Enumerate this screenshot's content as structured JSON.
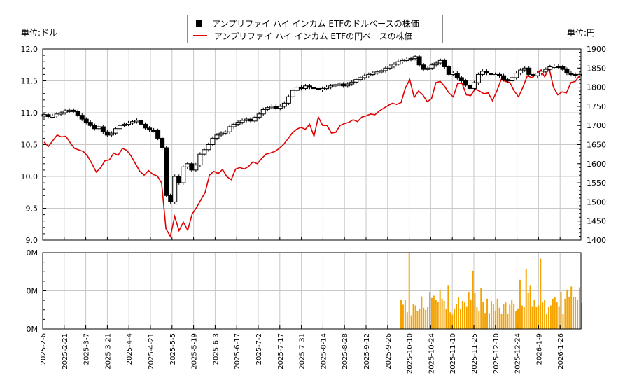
{
  "legend": {
    "usd_series_label": "アンプリファイ ハイ インカム ETFのドルベースの株価",
    "jpy_series_label": "アンプリファイ ハイ インカム ETFの円ベースの株価"
  },
  "axes": {
    "left_unit": "単位:ドル",
    "right_unit": "単位:円",
    "left_ticks": [
      "12.0",
      "11.5",
      "11.0",
      "10.5",
      "10.0",
      "9.5",
      "9.0"
    ],
    "right_ticks": [
      "1900",
      "1850",
      "1800",
      "1750",
      "1700",
      "1650",
      "1600",
      "1550",
      "1500",
      "1450",
      "1400"
    ],
    "volume_ticks": [
      "0M",
      "0M",
      "0M"
    ],
    "x_ticks": [
      "2025-2-6",
      "2025-2-21",
      "2025-3-7",
      "2025-3-21",
      "2025-4-4",
      "2025-4-21",
      "2025-5-5",
      "2025-5-19",
      "2025-6-3",
      "2025-6-17",
      "2025-7-2",
      "2025-7-17",
      "2025-7-31",
      "2025-8-14",
      "2025-8-28",
      "2025-9-12",
      "2025-9-26",
      "2025-10-10",
      "2025-10-24",
      "2025-11-10",
      "2025-11-25",
      "2025-12-10",
      "2025-12-24",
      "2026-1-9",
      "2026-1-26"
    ]
  },
  "colors": {
    "usd_candle": "#000000",
    "jpy_line": "#e00000",
    "volume_bar": "#f5a300",
    "grid": "#c8c8c8"
  },
  "chart_data": [
    {
      "type": "candlestick",
      "title": "アンプリファイ ハイ インカム ETFのドルベースの株価",
      "ylabel": "単位:ドル",
      "ylim": [
        9.0,
        12.0
      ],
      "x_range": [
        "2025-2-6",
        "2026-2-5"
      ],
      "approx_close": [
        10.97,
        10.94,
        10.95,
        10.98,
        11.0,
        11.03,
        11.04,
        11.02,
        10.96,
        10.9,
        10.85,
        10.8,
        10.75,
        10.78,
        10.7,
        10.65,
        10.68,
        10.75,
        10.8,
        10.82,
        10.84,
        10.86,
        10.88,
        10.82,
        10.76,
        10.73,
        10.72,
        10.6,
        10.45,
        9.7,
        9.6,
        10.0,
        9.9,
        10.15,
        10.2,
        10.1,
        10.18,
        10.35,
        10.42,
        10.5,
        10.6,
        10.65,
        10.68,
        10.7,
        10.78,
        10.82,
        10.85,
        10.88,
        10.9,
        10.87,
        10.93,
        10.98,
        11.05,
        11.08,
        11.1,
        11.07,
        11.1,
        11.15,
        11.25,
        11.35,
        11.4,
        11.38,
        11.42,
        11.4,
        11.38,
        11.36,
        11.38,
        11.4,
        11.42,
        11.44,
        11.45,
        11.42,
        11.45,
        11.48,
        11.52,
        11.55,
        11.58,
        11.6,
        11.62,
        11.64,
        11.66,
        11.7,
        11.73,
        11.76,
        11.8,
        11.82,
        11.84,
        11.85,
        11.88,
        11.75,
        11.68,
        11.7,
        11.75,
        11.78,
        11.82,
        11.72,
        11.6,
        11.62,
        11.55,
        11.5,
        11.43,
        11.38,
        11.47,
        11.6,
        11.65,
        11.62,
        11.6,
        11.6,
        11.58,
        11.52,
        11.5,
        11.55,
        11.62,
        11.67,
        11.7,
        11.6,
        11.58,
        11.62,
        11.65,
        11.68,
        11.72,
        11.73,
        11.72,
        11.68,
        11.62,
        11.6,
        11.58,
        11.6
      ]
    },
    {
      "type": "line",
      "title": "アンプリファイ ハイ インカム ETFの円ベースの株価",
      "ylabel": "単位:円",
      "ylim": [
        1400,
        1900
      ],
      "approx_values": [
        1657,
        1645,
        1660,
        1675,
        1670,
        1672,
        1655,
        1640,
        1636,
        1632,
        1620,
        1600,
        1578,
        1590,
        1608,
        1610,
        1628,
        1622,
        1640,
        1635,
        1620,
        1600,
        1580,
        1570,
        1582,
        1572,
        1568,
        1550,
        1430,
        1410,
        1462,
        1425,
        1447,
        1426,
        1468,
        1485,
        1505,
        1525,
        1570,
        1580,
        1574,
        1585,
        1566,
        1558,
        1586,
        1590,
        1586,
        1593,
        1605,
        1600,
        1614,
        1625,
        1628,
        1632,
        1640,
        1650,
        1665,
        1680,
        1690,
        1695,
        1690,
        1703,
        1672,
        1722,
        1700,
        1700,
        1680,
        1682,
        1700,
        1705,
        1708,
        1715,
        1710,
        1722,
        1725,
        1730,
        1728,
        1738,
        1745,
        1752,
        1758,
        1755,
        1760,
        1798,
        1820,
        1773,
        1790,
        1780,
        1762,
        1770,
        1812,
        1815,
        1802,
        1785,
        1775,
        1810,
        1810,
        1780,
        1778,
        1795,
        1790,
        1783,
        1785,
        1765,
        1790,
        1820,
        1815,
        1812,
        1790,
        1775,
        1800,
        1830,
        1825,
        1833,
        1845,
        1827,
        1850,
        1800,
        1780,
        1788,
        1785,
        1812,
        1815,
        1830
      ]
    },
    {
      "type": "bar",
      "title": "出来高",
      "ylim": [
        0,
        1
      ],
      "x_start": "2025-10-6",
      "values": [
        0.38,
        0.32,
        0.38,
        0.22,
        1.0,
        0.18,
        0.33,
        0.31,
        0.24,
        0.27,
        0.43,
        0.28,
        0.25,
        0.29,
        0.49,
        0.41,
        0.44,
        0.38,
        0.36,
        0.52,
        0.4,
        0.37,
        0.26,
        0.58,
        0.22,
        0.19,
        0.27,
        0.33,
        0.42,
        0.26,
        0.37,
        0.35,
        0.3,
        0.49,
        0.39,
        0.77,
        0.48,
        0.29,
        0.24,
        0.54,
        0.36,
        0.21,
        0.4,
        0.21,
        0.37,
        0.33,
        0.24,
        0.4,
        0.28,
        0.2,
        0.33,
        0.35,
        0.2,
        0.32,
        0.39,
        0.33,
        0.24,
        0.27,
        0.65,
        0.31,
        0.29,
        0.79,
        0.48,
        0.58,
        0.3,
        0.38,
        0.29,
        0.31,
        0.93,
        0.35,
        0.38,
        0.2,
        0.29,
        0.31,
        0.4,
        0.42,
        0.36,
        0.3,
        0.49,
        0.2,
        0.4,
        0.52,
        0.42,
        0.56,
        0.42,
        0.42,
        0.38,
        0.55,
        0.34
      ]
    }
  ]
}
